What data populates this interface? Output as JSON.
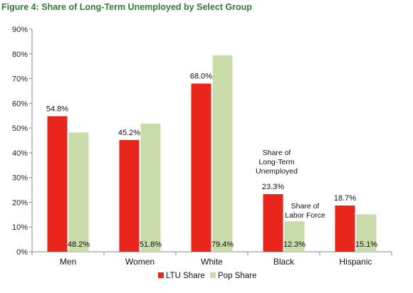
{
  "chart_data": {
    "type": "bar",
    "title": "Figure 4: Share of Long-Term Unemployed by Select Group",
    "categories": [
      "Men",
      "Women",
      "White",
      "Black",
      "Hispanic"
    ],
    "series": [
      {
        "name": "LTU Share",
        "values": [
          54.8,
          45.2,
          68.0,
          23.3,
          18.7
        ],
        "labels": [
          "54.8%",
          "45.2%",
          "68.0%",
          "23.3%",
          "18.7%"
        ],
        "color": "#e8261c"
      },
      {
        "name": "Pop Share",
        "values": [
          48.2,
          51.8,
          79.4,
          12.3,
          15.1
        ],
        "labels": [
          "48.2%",
          "51.8%",
          "79.4%",
          "12.3%",
          "15.1%"
        ],
        "color": "#c9dba9"
      }
    ],
    "yticks": [
      "0%",
      "10%",
      "20%",
      "30%",
      "40%",
      "50%",
      "60%",
      "70%",
      "80%",
      "90%"
    ],
    "ylim": [
      0,
      90
    ],
    "grid": false,
    "legend_position": "bottom",
    "annotations": {
      "ltu": [
        "Share of",
        "Long-Term",
        "Unemployed"
      ],
      "pop": [
        "Share of",
        "Labor Force"
      ]
    }
  }
}
